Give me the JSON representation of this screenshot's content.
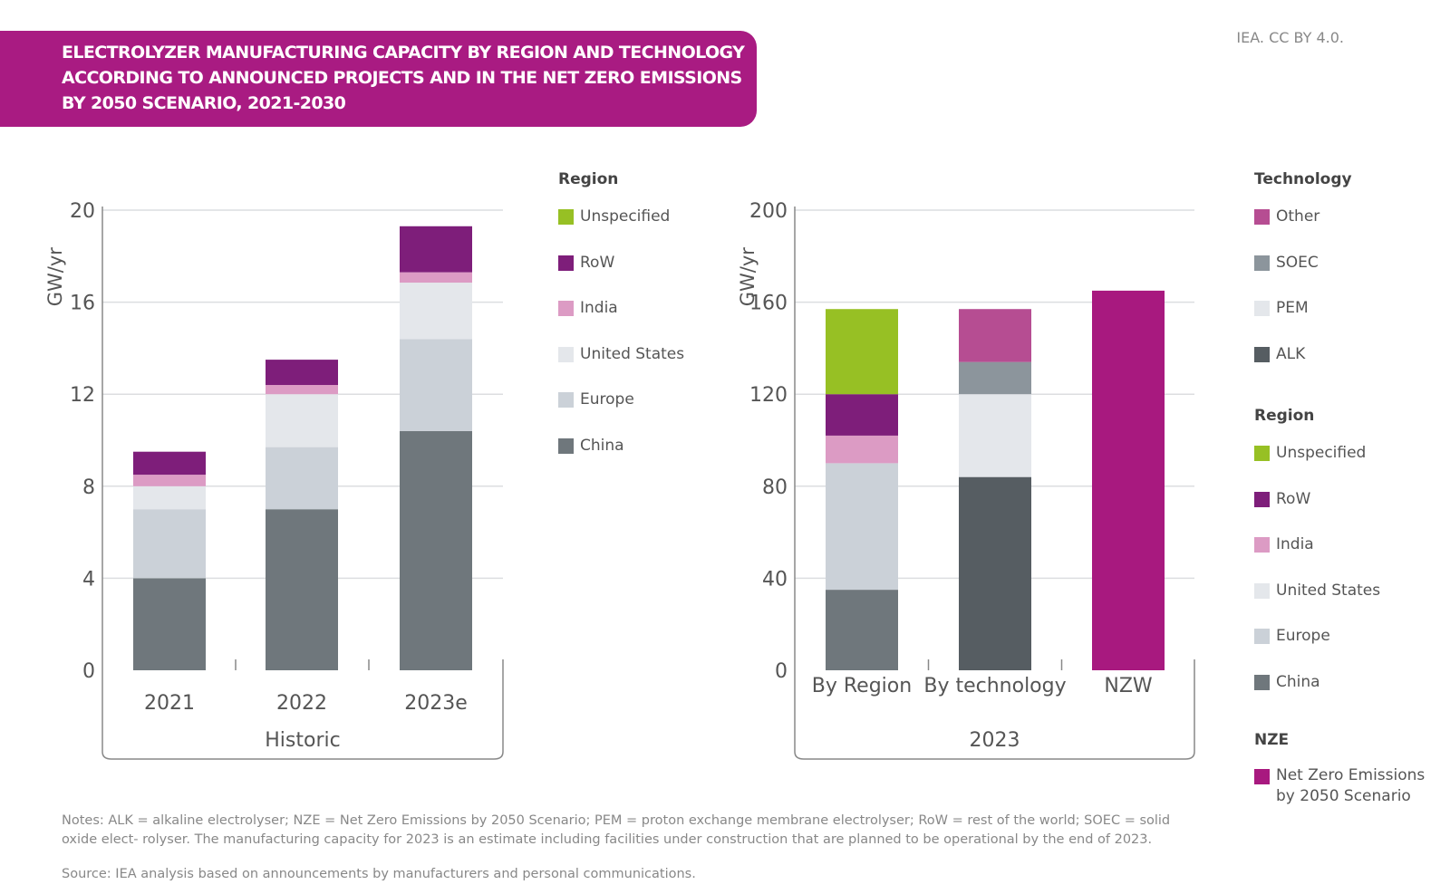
{
  "title": [
    "ELECTROLYZER MANUFACTURING CAPACITY BY REGION AND TECHNOLOGY",
    "ACCORDING TO ANNOUNCED PROJECTS AND IN THE NET ZERO EMISSIONS",
    "BY 2050 SCENARIO, 2021-2030"
  ],
  "credit": "IEA. CC BY 4.0.",
  "notes": "Notes: ALK = alkaline electrolyser; NZE = Net Zero Emissions by 2050 Scenario; PEM = proton exchange membrane electrolyser; RoW = rest of the world; SOEC = solid oxide elect- rolyser. The manufacturing capacity for 2023 is an estimate including facilities under construction that are planned to be operational by the end of 2023.",
  "source": "Source: IEA analysis based on announcements by manufacturers and personal communications.",
  "colors": {
    "Unspecified": "#97c024",
    "RoW": "#7e1e7a",
    "India": "#dc9bc4",
    "United States": "#e4e7eb",
    "Europe": "#cbd1d8",
    "China": "#6f777c",
    "Other": "#b64d92",
    "SOEC": "#8c959c",
    "PEM": "#e4e7eb",
    "ALK": "#565d62",
    "NZE": "#a8197f"
  },
  "legend_left": {
    "title": "Region",
    "items": [
      "Unspecified",
      "RoW",
      "India",
      "United States",
      "Europe",
      "China"
    ]
  },
  "legend_right": {
    "tech_title": "Technology",
    "tech_items": [
      "Other",
      "SOEC",
      "PEM",
      "ALK"
    ],
    "region_title": "Region",
    "region_items": [
      "Unspecified",
      "RoW",
      "India",
      "United States",
      "Europe",
      "China"
    ],
    "nze_title": "NZE",
    "nze_item": "Net Zero Emissions by 2050 Scenario"
  },
  "chart_data": [
    {
      "type": "bar",
      "stacked": true,
      "ylabel": "GW/yr",
      "ylim": [
        0,
        20
      ],
      "yticks": [
        0,
        4,
        8,
        12,
        16,
        20
      ],
      "grid": true,
      "categories": [
        "2021",
        "2022",
        "2023e"
      ],
      "group_label": "Historic",
      "series": [
        {
          "name": "China",
          "values": [
            4.0,
            7.0,
            10.4
          ]
        },
        {
          "name": "Europe",
          "values": [
            3.0,
            2.7,
            4.0
          ]
        },
        {
          "name": "United States",
          "values": [
            1.0,
            2.3,
            2.45
          ]
        },
        {
          "name": "India",
          "values": [
            0.5,
            0.4,
            0.45
          ]
        },
        {
          "name": "RoW",
          "values": [
            1.0,
            1.1,
            2.0
          ]
        }
      ]
    },
    {
      "type": "bar",
      "stacked": true,
      "ylabel": "GW/yr",
      "ylim": [
        0,
        200
      ],
      "yticks": [
        0,
        40,
        80,
        120,
        160,
        200
      ],
      "grid": true,
      "categories": [
        "By Region",
        "By technology",
        "NZW"
      ],
      "group_label": "2023",
      "series": [
        {
          "name": "China",
          "values": [
            35,
            0,
            0
          ]
        },
        {
          "name": "Europe",
          "values": [
            55,
            0,
            0
          ]
        },
        {
          "name": "United States",
          "values": [
            0,
            0,
            0
          ]
        },
        {
          "name": "India",
          "values": [
            12,
            0,
            0
          ]
        },
        {
          "name": "RoW",
          "values": [
            18,
            0,
            0
          ]
        },
        {
          "name": "Unspecified",
          "values": [
            37,
            0,
            0
          ]
        },
        {
          "name": "ALK",
          "values": [
            0,
            84,
            0
          ]
        },
        {
          "name": "PEM",
          "values": [
            0,
            36,
            0
          ]
        },
        {
          "name": "SOEC",
          "values": [
            0,
            14,
            0
          ]
        },
        {
          "name": "Other",
          "values": [
            0,
            23,
            0
          ]
        },
        {
          "name": "NZE",
          "values": [
            0,
            0,
            165
          ]
        }
      ]
    }
  ]
}
